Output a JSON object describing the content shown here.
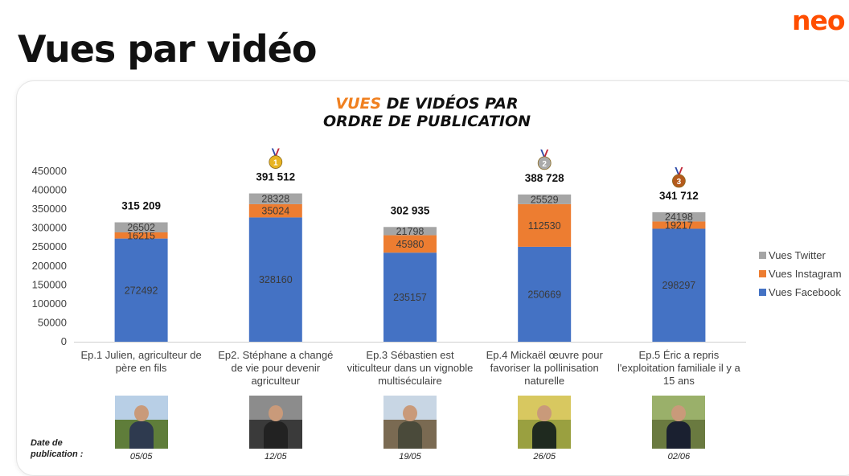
{
  "header": {
    "title": "Vues par vidéo"
  },
  "brand": {
    "text": "neo",
    "color": "#ff4e00"
  },
  "chart_title": {
    "accent": "VUES",
    "rest_line1": "DE VIDÉOS PAR",
    "line2": "ORDRE DE PUBLICATION"
  },
  "chart_data": {
    "type": "bar",
    "stacked": true,
    "title": "VUES DE VIDÉOS PAR ORDRE DE PUBLICATION",
    "categories": [
      [
        "Ep.1 Julien, agriculteur de",
        "père en fils"
      ],
      [
        "Ep2. Stéphane a changé",
        "de vie pour devenir",
        "agriculteur"
      ],
      [
        "Ep.3 Sébastien est",
        "viticulteur dans un vignoble",
        "multiséculaire"
      ],
      [
        "Ep.4 Mickaël œuvre pour",
        "favoriser la pollinisation",
        "naturelle"
      ],
      [
        "Ep.5 Éric a repris",
        "l'exploitation familiale il y a",
        "15 ans"
      ]
    ],
    "series": [
      {
        "name": "Vues Facebook",
        "color": "#4472c4",
        "values": [
          272492,
          328160,
          235157,
          250669,
          298297
        ]
      },
      {
        "name": "Vues Instagram",
        "color": "#ed7d31",
        "values": [
          16215,
          35024,
          45980,
          112530,
          19217
        ]
      },
      {
        "name": "Vues Twitter",
        "color": "#a5a5a5",
        "values": [
          26502,
          28328,
          21798,
          25529,
          24198
        ]
      }
    ],
    "totals": [
      "315 209",
      "391 512",
      "302 935",
      "388 728",
      "341 712"
    ],
    "medals": [
      null,
      "1",
      null,
      "2",
      "3"
    ],
    "yticks": [
      0,
      50000,
      100000,
      150000,
      200000,
      250000,
      300000,
      350000,
      400000,
      450000
    ],
    "ylim": [
      0,
      450000
    ],
    "legend_position": "right",
    "grid": false
  },
  "medal_colors": {
    "1": "#e8b422",
    "2": "#a9a9a9",
    "3": "#b45a1c"
  },
  "publication": {
    "label_line1": "Date de",
    "label_line2": "publication :",
    "dates": [
      "05/05",
      "12/05",
      "19/05",
      "26/05",
      "02/06"
    ]
  },
  "photos": [
    {
      "name": "photo-julien",
      "sky": "#b8cfe6",
      "ground": "#5f7d3a",
      "shirt": "#2e3a4f"
    },
    {
      "name": "photo-stephane",
      "sky": "#8c8c8c",
      "ground": "#3a3a3a",
      "shirt": "#222222"
    },
    {
      "name": "photo-sebastien",
      "sky": "#c8d6e4",
      "ground": "#7a6a52",
      "shirt": "#4a4a3a"
    },
    {
      "name": "photo-mickael",
      "sky": "#d8c860",
      "ground": "#9aa040",
      "shirt": "#1f2a1f"
    },
    {
      "name": "photo-eric",
      "sky": "#9ab06a",
      "ground": "#6a7a40",
      "shirt": "#1a2030"
    }
  ]
}
